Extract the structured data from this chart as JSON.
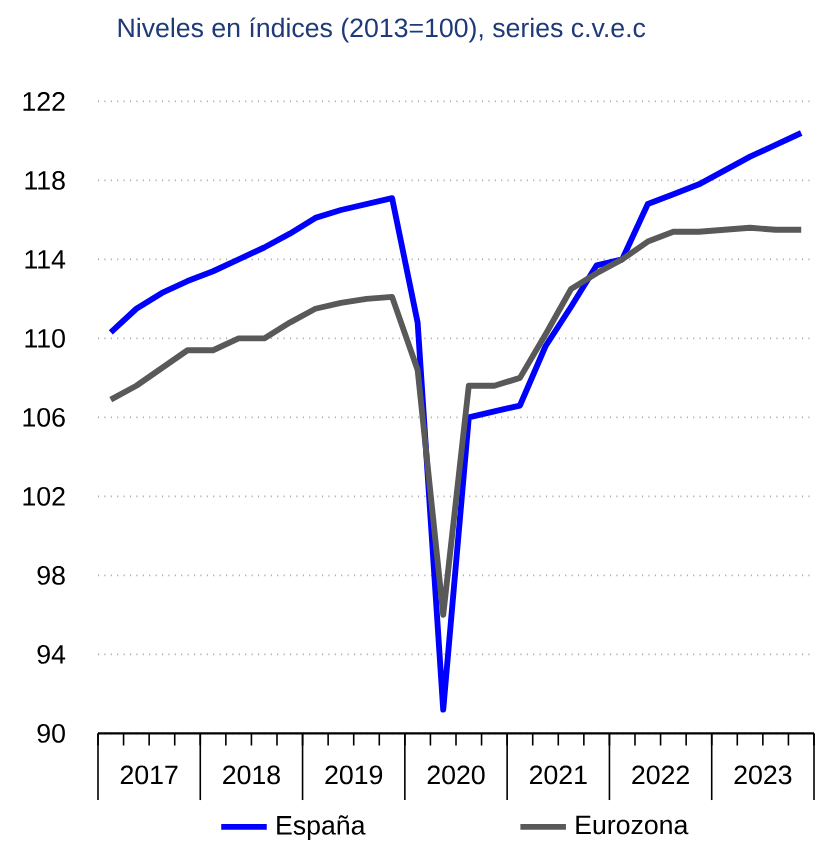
{
  "chart_data": {
    "type": "line",
    "title": "Niveles en índices (2013=100), series c.v.e.c",
    "x": [
      2017.125,
      2017.375,
      2017.625,
      2017.875,
      2018.125,
      2018.375,
      2018.625,
      2018.875,
      2019.125,
      2019.375,
      2019.625,
      2019.875,
      2020.125,
      2020.375,
      2020.625,
      2020.875,
      2021.125,
      2021.375,
      2021.625,
      2021.875,
      2022.125,
      2022.375,
      2022.625,
      2022.875,
      2023.125,
      2023.375,
      2023.625,
      2023.875
    ],
    "series": [
      {
        "name": "España",
        "color": "#0000ff",
        "values": [
          110.3,
          111.5,
          112.3,
          112.9,
          113.4,
          114.0,
          114.6,
          115.3,
          116.1,
          116.5,
          116.8,
          117.1,
          110.8,
          91.2,
          106.0,
          106.3,
          106.6,
          109.6,
          111.6,
          113.7,
          114.0,
          116.8,
          117.3,
          117.8,
          118.5,
          119.2,
          119.8,
          120.4
        ]
      },
      {
        "name": "Eurozona",
        "color": "#595959",
        "values": [
          106.9,
          107.6,
          108.5,
          109.4,
          109.4,
          110.0,
          110.0,
          110.8,
          111.5,
          111.8,
          112.0,
          112.1,
          108.4,
          96.0,
          107.6,
          107.6,
          108.0,
          110.2,
          112.5,
          113.3,
          114.0,
          114.9,
          115.4,
          115.4,
          115.5,
          115.6,
          115.5,
          115.5
        ]
      }
    ],
    "xlim": [
      2017,
      2024
    ],
    "xticks": [
      {
        "value": 2017,
        "label": null
      },
      {
        "value": 2017.25,
        "label": null
      },
      {
        "value": 2017.5,
        "label": "2017"
      },
      {
        "value": 2017.75,
        "label": null
      },
      {
        "value": 2018,
        "label": null
      },
      {
        "value": 2018.25,
        "label": null
      },
      {
        "value": 2018.5,
        "label": "2018"
      },
      {
        "value": 2018.75,
        "label": null
      },
      {
        "value": 2019,
        "label": null
      },
      {
        "value": 2019.25,
        "label": null
      },
      {
        "value": 2019.5,
        "label": "2019"
      },
      {
        "value": 2019.75,
        "label": null
      },
      {
        "value": 2020,
        "label": null
      },
      {
        "value": 2020.25,
        "label": null
      },
      {
        "value": 2020.5,
        "label": "2020"
      },
      {
        "value": 2020.75,
        "label": null
      },
      {
        "value": 2021,
        "label": null
      },
      {
        "value": 2021.25,
        "label": null
      },
      {
        "value": 2021.5,
        "label": "2021"
      },
      {
        "value": 2021.75,
        "label": null
      },
      {
        "value": 2022,
        "label": null
      },
      {
        "value": 2022.25,
        "label": null
      },
      {
        "value": 2022.5,
        "label": "2022"
      },
      {
        "value": 2022.75,
        "label": null
      },
      {
        "value": 2023,
        "label": null
      },
      {
        "value": 2023.25,
        "label": null
      },
      {
        "value": 2023.5,
        "label": "2023"
      },
      {
        "value": 2023.75,
        "label": null
      },
      {
        "value": 2024,
        "label": null
      }
    ],
    "ylim": [
      90,
      122
    ],
    "yticks": [
      90,
      94,
      98,
      102,
      106,
      110,
      114,
      118,
      122
    ],
    "grid": "y",
    "legend": "bottom",
    "line_style": "solid",
    "marker": "none"
  }
}
